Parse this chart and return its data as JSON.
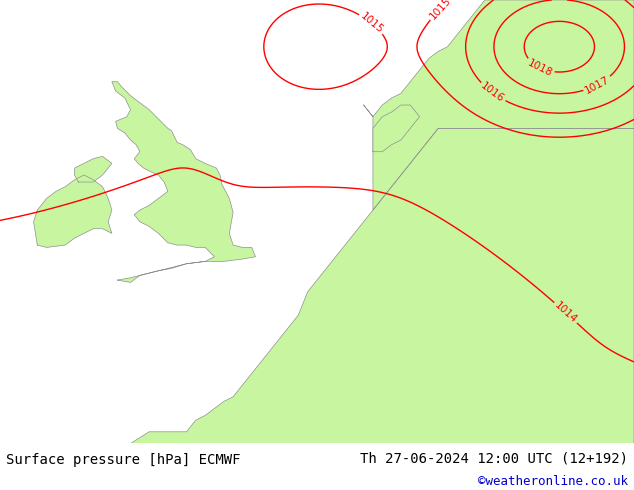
{
  "title_left": "Surface pressure [hPa] ECMWF",
  "title_right": "Th 27-06-2024 12:00 UTC (12+192)",
  "credit": "©weatheronline.co.uk",
  "credit_color": "#0000cc",
  "land_color": "#c8f5a0",
  "sea_color": "#d8d8d8",
  "contour_color": "#ff0000",
  "coast_color": "#909090",
  "footer_bg": "#ffffff",
  "label_fontsize": 7.5,
  "footer_fontsize": 10,
  "credit_fontsize": 9,
  "figsize": [
    6.34,
    4.9
  ],
  "dpi": 100,
  "lon_min": -12.0,
  "lon_max": 22.0,
  "lat_min": 43.0,
  "lat_max": 62.0
}
